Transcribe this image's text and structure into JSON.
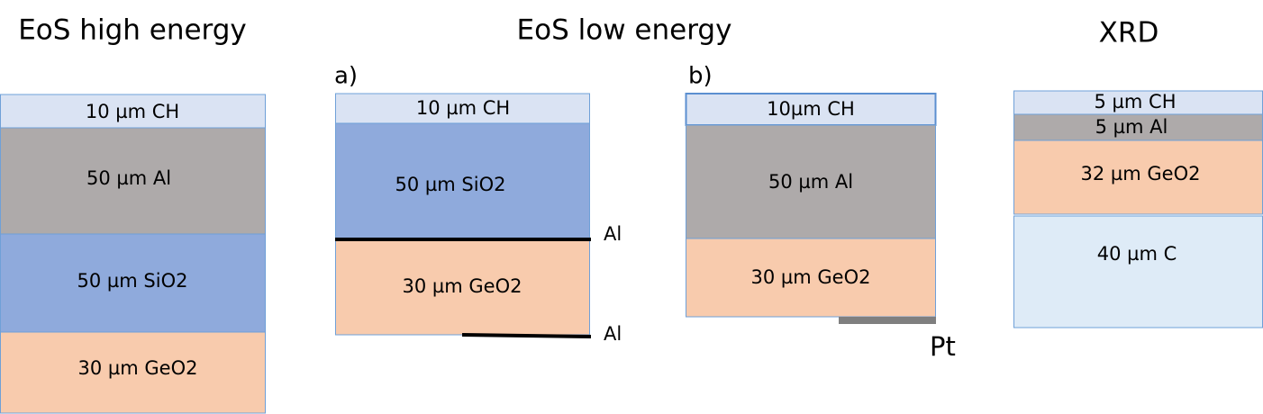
{
  "titles": [
    "EoS high energy",
    "EoS low energy",
    "XRD"
  ],
  "stacks": [
    {
      "layers": [
        "10 µm CH",
        "50 µm Al",
        "50 µm SiO2",
        "30 µm GeO2"
      ]
    },
    {
      "label": "a)",
      "layers": [
        "10 µm CH",
        "50 µm SiO2",
        "30 µm GeO2"
      ],
      "annotations": [
        "Al",
        "Al"
      ]
    },
    {
      "label": "b)",
      "layers": [
        "10µm CH",
        "50 µm Al",
        "30 µm GeO2"
      ],
      "annotations": [
        "Pt"
      ]
    },
    {
      "layers": [
        "5 µm CH",
        "5 µm Al",
        "32 µm GeO2",
        "40 µm C"
      ]
    }
  ]
}
